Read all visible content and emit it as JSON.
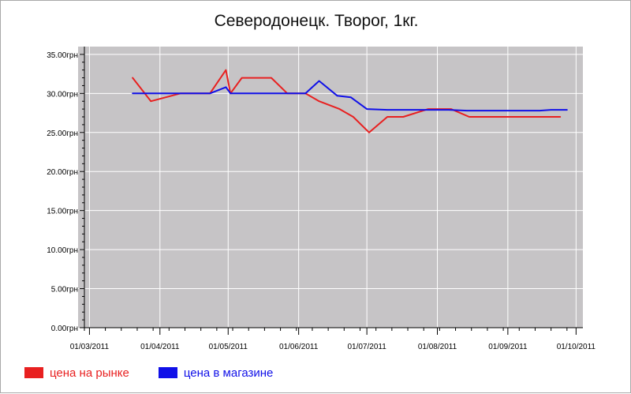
{
  "chart_data": {
    "type": "line",
    "title": "Северодонецк. Творог, 1кг.",
    "xlabel": "",
    "ylabel": "",
    "ylim": [
      0,
      36
    ],
    "x_range": [
      "2011-02-24",
      "2011-10-04"
    ],
    "y_ticks": [
      {
        "value": 0,
        "label": "0.00грн"
      },
      {
        "value": 5,
        "label": "5.00грн"
      },
      {
        "value": 10,
        "label": "10.00грн"
      },
      {
        "value": 15,
        "label": "15.00грн"
      },
      {
        "value": 20,
        "label": "20.00грн"
      },
      {
        "value": 25,
        "label": "25.00грн"
      },
      {
        "value": 30,
        "label": "30.00грн"
      },
      {
        "value": 35,
        "label": "35.00грн"
      }
    ],
    "x_ticks": [
      {
        "date": "2011-03-01",
        "label": "01/03/2011"
      },
      {
        "date": "2011-04-01",
        "label": "01/04/2011"
      },
      {
        "date": "2011-05-01",
        "label": "01/05/2011"
      },
      {
        "date": "2011-06-01",
        "label": "01/06/2011"
      },
      {
        "date": "2011-07-01",
        "label": "01/07/2011"
      },
      {
        "date": "2011-08-01",
        "label": "01/08/2011"
      },
      {
        "date": "2011-09-01",
        "label": "01/09/2011"
      },
      {
        "date": "2011-10-01",
        "label": "01/10/2011"
      }
    ],
    "grid": true,
    "legend_position": "bottom-left",
    "background_color": "#c6c4c6",
    "grid_color": "#ffffff",
    "series": [
      {
        "name": "цена на рынке",
        "color": "#e82020",
        "points": [
          [
            "2011-03-20",
            32.0
          ],
          [
            "2011-03-28",
            29.0
          ],
          [
            "2011-04-10",
            30.0
          ],
          [
            "2011-04-23",
            30.0
          ],
          [
            "2011-04-30",
            33.0
          ],
          [
            "2011-05-02",
            30.0
          ],
          [
            "2011-05-07",
            32.0
          ],
          [
            "2011-05-20",
            32.0
          ],
          [
            "2011-05-27",
            30.0
          ],
          [
            "2011-06-04",
            30.0
          ],
          [
            "2011-06-10",
            29.0
          ],
          [
            "2011-06-19",
            28.0
          ],
          [
            "2011-06-25",
            27.0
          ],
          [
            "2011-07-02",
            25.0
          ],
          [
            "2011-07-10",
            27.0
          ],
          [
            "2011-07-17",
            27.0
          ],
          [
            "2011-07-28",
            28.0
          ],
          [
            "2011-08-07",
            28.0
          ],
          [
            "2011-08-15",
            27.0
          ],
          [
            "2011-09-24",
            27.0
          ]
        ]
      },
      {
        "name": "цена в магазине",
        "color": "#1010e8",
        "points": [
          [
            "2011-03-20",
            30.0
          ],
          [
            "2011-04-23",
            30.0
          ],
          [
            "2011-04-30",
            30.8
          ],
          [
            "2011-05-02",
            30.0
          ],
          [
            "2011-05-27",
            30.0
          ],
          [
            "2011-06-04",
            30.0
          ],
          [
            "2011-06-10",
            31.6
          ],
          [
            "2011-06-18",
            29.7
          ],
          [
            "2011-06-24",
            29.5
          ],
          [
            "2011-07-01",
            28.0
          ],
          [
            "2011-07-10",
            27.9
          ],
          [
            "2011-07-28",
            27.9
          ],
          [
            "2011-08-06",
            27.9
          ],
          [
            "2011-08-14",
            27.8
          ],
          [
            "2011-09-15",
            27.8
          ],
          [
            "2011-09-20",
            27.9
          ],
          [
            "2011-09-27",
            27.9
          ]
        ]
      }
    ]
  }
}
